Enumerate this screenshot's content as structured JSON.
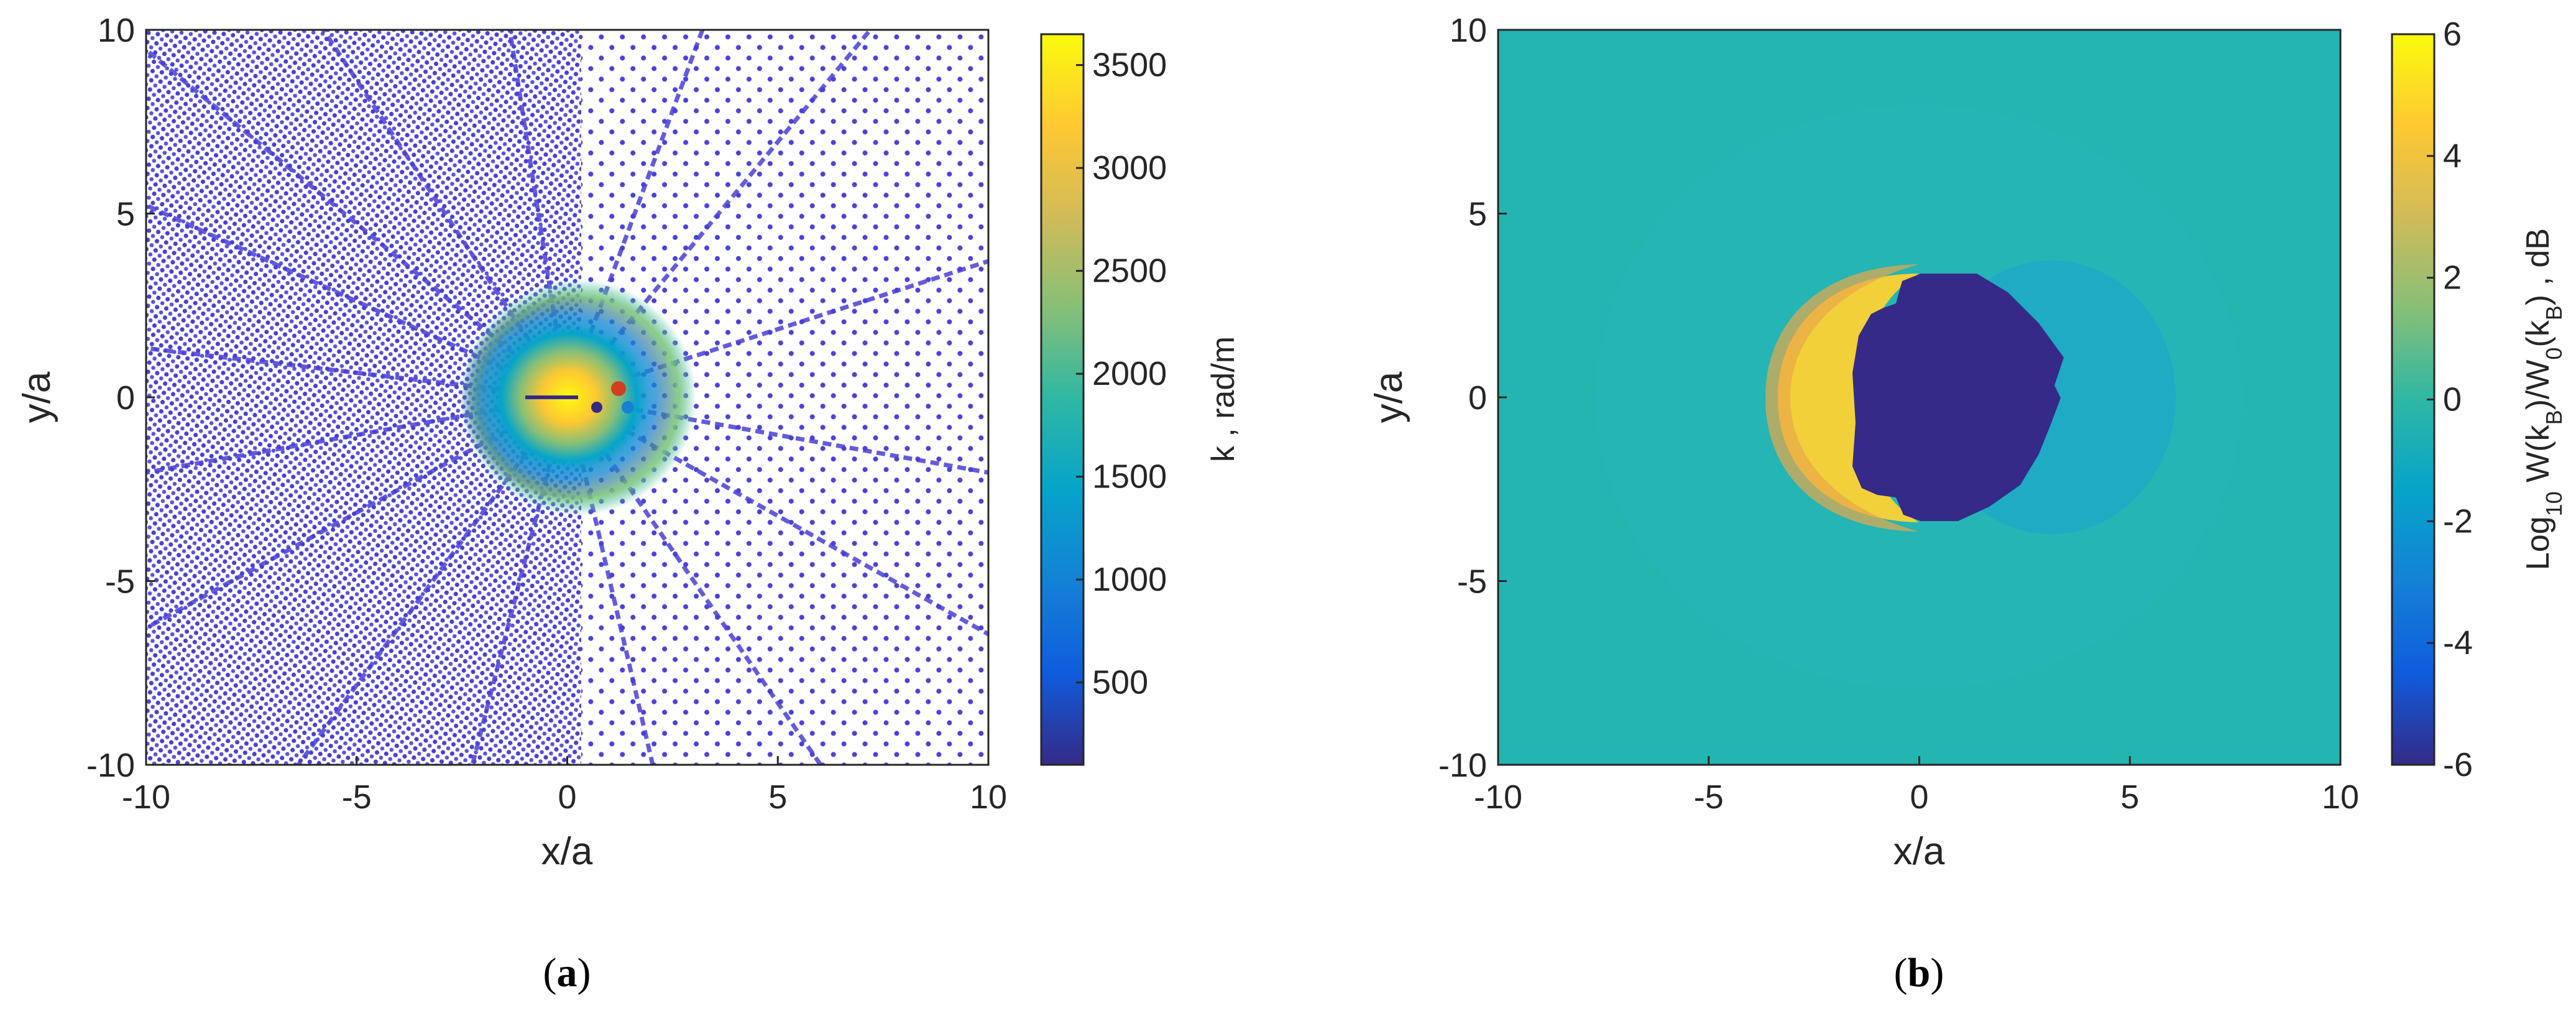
{
  "chart_data": [
    {
      "type": "scatter",
      "panel_label": "(a)",
      "caption": {
        "open": "(",
        "letter": "a",
        "close": ")"
      },
      "xlabel": "x/a",
      "ylabel": "y/a",
      "xlim": [
        -10,
        10
      ],
      "ylim": [
        -10,
        10
      ],
      "xticks": [
        "-10",
        "-5",
        "0",
        "5",
        "10"
      ],
      "yticks": [
        "10",
        "5",
        "0",
        "-5",
        "-10"
      ],
      "colorbar": {
        "label": "k , rad/m",
        "range": [
          100,
          3650
        ],
        "ticks": [
          "3500",
          "3000",
          "2500",
          "2000",
          "1500",
          "1000",
          "500"
        ],
        "colormap": "parula"
      },
      "grid": false,
      "description_values": {
        "background_k": 200,
        "peak_k": 3600,
        "hotspot_center": [
          0,
          0
        ],
        "hotspot_radius": 1.5
      }
    },
    {
      "type": "heatmap",
      "panel_label": "(b)",
      "caption": {
        "open": "(",
        "letter": "b",
        "close": ")"
      },
      "xlabel": "x/a",
      "ylabel": "y/a",
      "xlim": [
        -10,
        10
      ],
      "ylim": [
        -10,
        10
      ],
      "xticks": [
        "-10",
        "-5",
        "0",
        "5",
        "10"
      ],
      "yticks": [
        "10",
        "5",
        "0",
        "-5",
        "-10"
      ],
      "colorbar": {
        "label_prefix": "Log",
        "label_sub1": "10",
        "label_mid1": " W(k",
        "label_sub2": "B",
        "label_mid2": ")/W",
        "label_sub3": "0",
        "label_mid3": "(k",
        "label_sub4": "B",
        "label_suffix": ") , dB",
        "range": [
          -6,
          6
        ],
        "ticks": [
          "6",
          "4",
          "2",
          "0",
          "-2",
          "-4",
          "-6"
        ],
        "colormap": "parula"
      },
      "grid": false,
      "description_values": {
        "background_value": 0.3,
        "shadow_region_value": -6,
        "bright_crescent_value": 5,
        "shadow_x_range": [
          -2.6,
          3.3
        ],
        "shadow_y_range": [
          -2.9,
          2.9
        ]
      }
    }
  ],
  "colors": {
    "parula_stops": [
      "#352a87",
      "#0f5cdd",
      "#1481d6",
      "#06a4ca",
      "#2eb7a4",
      "#87bf77",
      "#d1bb59",
      "#fec832",
      "#f9fb0e"
    ],
    "axis": "#262626",
    "background": "#ffffff"
  }
}
